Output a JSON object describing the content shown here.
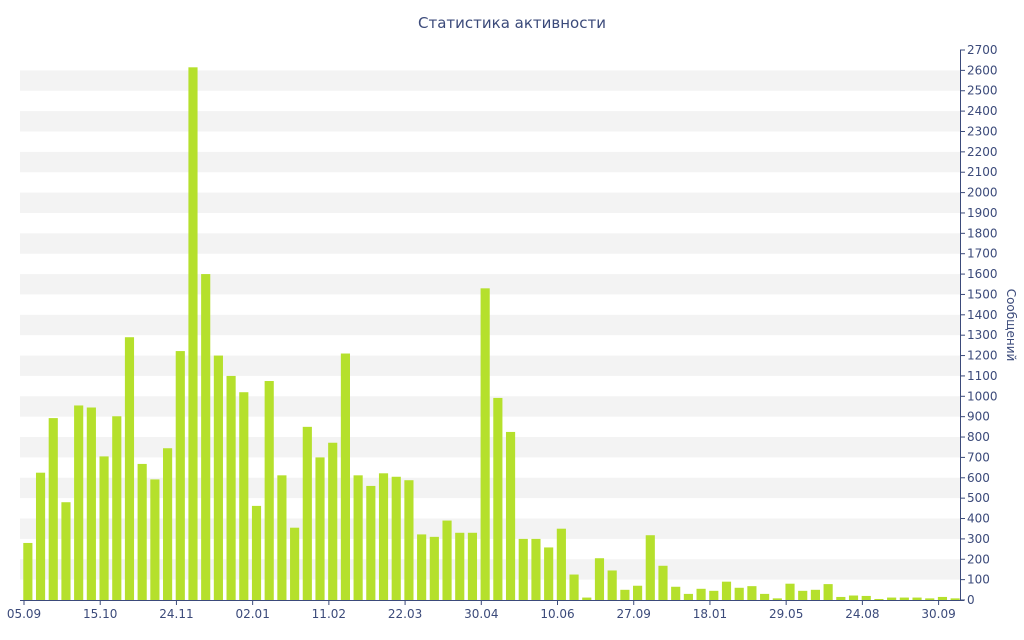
{
  "chart_data": {
    "type": "bar",
    "title": "Статистика активности",
    "xlabel": "",
    "ylabel": "Сообщений",
    "ylim": [
      0,
      2700
    ],
    "y_ticks": [
      0,
      100,
      200,
      300,
      400,
      500,
      600,
      700,
      800,
      900,
      1000,
      1100,
      1200,
      1300,
      1400,
      1500,
      1600,
      1700,
      1800,
      1900,
      2000,
      2100,
      2200,
      2300,
      2400,
      2500,
      2600,
      2700
    ],
    "y_axis_side": "right",
    "x_tick_labels": [
      {
        "label": "05.09",
        "index": 0
      },
      {
        "label": "15.10",
        "index": 6
      },
      {
        "label": "24.11",
        "index": 12
      },
      {
        "label": "02.01",
        "index": 18
      },
      {
        "label": "11.02",
        "index": 24
      },
      {
        "label": "22.03",
        "index": 30
      },
      {
        "label": "30.04",
        "index": 36
      },
      {
        "label": "10.06",
        "index": 42
      },
      {
        "label": "27.09",
        "index": 48
      },
      {
        "label": "18.01",
        "index": 54
      },
      {
        "label": "29.05",
        "index": 60
      },
      {
        "label": "24.08",
        "index": 66
      },
      {
        "label": "30.09",
        "index": 72
      }
    ],
    "values": [
      280,
      625,
      893,
      480,
      955,
      945,
      705,
      902,
      1290,
      668,
      592,
      745,
      1222,
      2615,
      1600,
      1200,
      1100,
      1020,
      462,
      1075,
      612,
      355,
      850,
      700,
      772,
      1210,
      612,
      560,
      622,
      605,
      588,
      322,
      310,
      390,
      330,
      330,
      1530,
      992,
      825,
      300,
      300,
      258,
      350,
      125,
      12,
      205,
      145,
      50,
      70,
      318,
      168,
      65,
      30,
      55,
      45,
      90,
      60,
      68,
      30,
      8,
      80,
      45,
      50,
      78,
      15,
      22,
      20,
      5,
      12,
      12,
      12,
      8,
      15,
      8
    ],
    "colors": {
      "bar": "#b5e02c",
      "band": "#f3f3f3",
      "axis": "#3b4a7a",
      "text": "#3b4a7a"
    },
    "grid": "alternating-bands",
    "legend": "none"
  }
}
